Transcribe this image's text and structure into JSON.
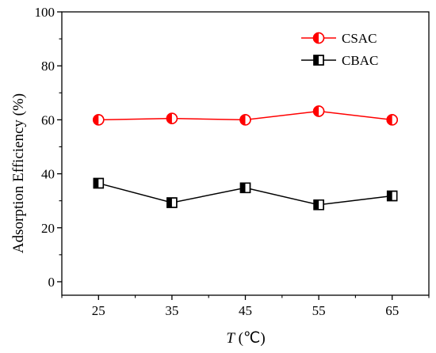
{
  "chart_data": {
    "type": "line",
    "x": [
      25,
      35,
      45,
      55,
      65
    ],
    "x_tick_labels": [
      "25",
      "35",
      "45",
      "55",
      "65"
    ],
    "y_tick_labels": [
      "0",
      "20",
      "40",
      "60",
      "80",
      "100"
    ],
    "xlabel_italic": "T",
    "xlabel_unit": " (℃)",
    "ylabel": "Adsorption Efficiency (%)",
    "xlim": [
      20,
      70
    ],
    "ylim": [
      -5,
      100
    ],
    "grid": false,
    "legend_position": "top-right",
    "series": [
      {
        "name": "CSAC",
        "values": [
          60.0,
          60.5,
          60.0,
          63.2,
          60.0
        ],
        "color": "#ff0000",
        "marker": "half-filled-circle"
      },
      {
        "name": "CBAC",
        "values": [
          36.5,
          29.3,
          34.8,
          28.5,
          31.8
        ],
        "color": "#000000",
        "marker": "half-filled-square"
      }
    ]
  }
}
